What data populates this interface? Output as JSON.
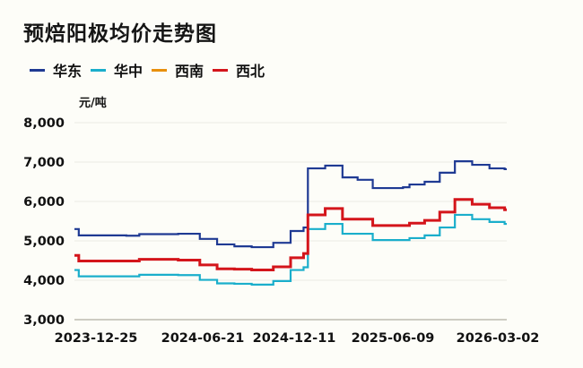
{
  "title": "预焙阳极均价走势图",
  "unit_label": "元/吨",
  "legend": [
    {
      "name": "华东",
      "color": "#1f3a93"
    },
    {
      "name": "华中",
      "color": "#1aaecb"
    },
    {
      "name": "西南",
      "color": "#e8900c"
    },
    {
      "name": "西北",
      "color": "#d4151b"
    }
  ],
  "chart_data": {
    "type": "line",
    "title": "预焙阳极均价走势图",
    "xlabel": "",
    "ylabel": "元/吨",
    "ylim": [
      3000,
      8000
    ],
    "yticks": [
      3000,
      4000,
      5000,
      6000,
      7000,
      8000
    ],
    "ytick_labels": [
      "3,000",
      "4,000",
      "5,000",
      "6,000",
      "7,000",
      "8,000"
    ],
    "xtick_labels": [
      "2023-12-25",
      "2024-06-21",
      "2024-12-11",
      "2025-06-09",
      "2026-03-02"
    ],
    "xtick_positions": [
      0.0,
      0.24,
      0.49,
      0.73,
      1.0
    ],
    "grid": true,
    "legend_position": "top-left",
    "step": true,
    "series": [
      {
        "name": "华东",
        "color": "#1f3a93",
        "points": [
          [
            0.0,
            5300
          ],
          [
            0.01,
            5140
          ],
          [
            0.12,
            5130
          ],
          [
            0.15,
            5170
          ],
          [
            0.24,
            5180
          ],
          [
            0.29,
            5050
          ],
          [
            0.33,
            4910
          ],
          [
            0.37,
            4860
          ],
          [
            0.41,
            4840
          ],
          [
            0.46,
            4950
          ],
          [
            0.5,
            5250
          ],
          [
            0.53,
            5340
          ],
          [
            0.54,
            6840
          ],
          [
            0.58,
            6910
          ],
          [
            0.62,
            6610
          ],
          [
            0.655,
            6550
          ],
          [
            0.69,
            6340
          ],
          [
            0.76,
            6360
          ],
          [
            0.775,
            6430
          ],
          [
            0.81,
            6500
          ],
          [
            0.845,
            6730
          ],
          [
            0.88,
            7020
          ],
          [
            0.92,
            6930
          ],
          [
            0.96,
            6840
          ],
          [
            0.995,
            6820
          ]
        ]
      },
      {
        "name": "华中",
        "color": "#1aaecb",
        "points": [
          [
            0.0,
            4260
          ],
          [
            0.01,
            4100
          ],
          [
            0.12,
            4100
          ],
          [
            0.15,
            4140
          ],
          [
            0.24,
            4130
          ],
          [
            0.29,
            4010
          ],
          [
            0.33,
            3920
          ],
          [
            0.37,
            3910
          ],
          [
            0.41,
            3890
          ],
          [
            0.46,
            3980
          ],
          [
            0.5,
            4260
          ],
          [
            0.53,
            4330
          ],
          [
            0.54,
            5300
          ],
          [
            0.58,
            5430
          ],
          [
            0.62,
            5180
          ],
          [
            0.69,
            5020
          ],
          [
            0.775,
            5070
          ],
          [
            0.81,
            5140
          ],
          [
            0.845,
            5340
          ],
          [
            0.88,
            5660
          ],
          [
            0.92,
            5550
          ],
          [
            0.96,
            5480
          ],
          [
            0.995,
            5430
          ]
        ]
      },
      {
        "name": "西南",
        "color": "#e8900c",
        "points": []
      },
      {
        "name": "西北",
        "color": "#d4151b",
        "points": [
          [
            0.0,
            4630
          ],
          [
            0.01,
            4490
          ],
          [
            0.12,
            4490
          ],
          [
            0.15,
            4530
          ],
          [
            0.24,
            4510
          ],
          [
            0.29,
            4390
          ],
          [
            0.33,
            4290
          ],
          [
            0.37,
            4280
          ],
          [
            0.41,
            4260
          ],
          [
            0.46,
            4340
          ],
          [
            0.5,
            4570
          ],
          [
            0.53,
            4680
          ],
          [
            0.54,
            5660
          ],
          [
            0.58,
            5820
          ],
          [
            0.62,
            5550
          ],
          [
            0.69,
            5390
          ],
          [
            0.775,
            5450
          ],
          [
            0.81,
            5520
          ],
          [
            0.845,
            5730
          ],
          [
            0.88,
            6050
          ],
          [
            0.92,
            5930
          ],
          [
            0.96,
            5840
          ],
          [
            0.995,
            5790
          ]
        ]
      }
    ]
  }
}
